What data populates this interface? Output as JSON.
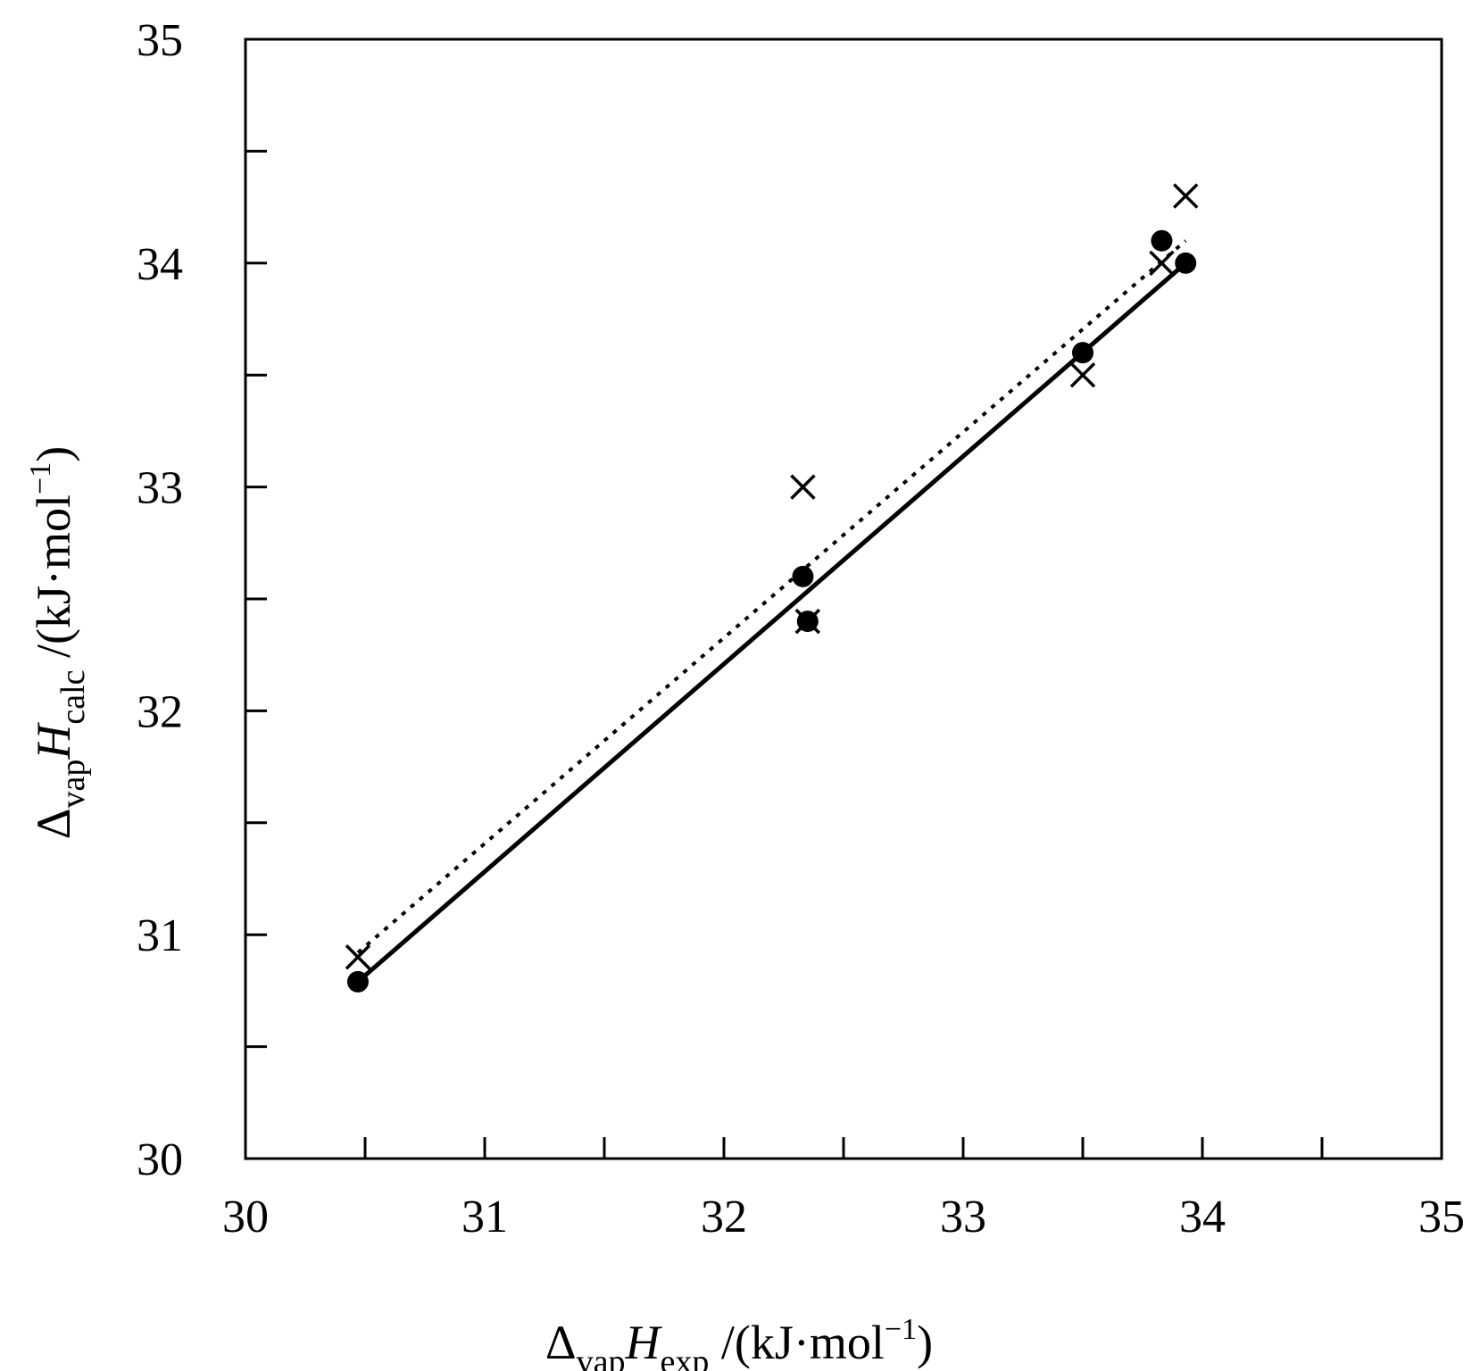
{
  "chart_data": {
    "type": "scatter",
    "title": "",
    "xlim": [
      30,
      35
    ],
    "ylim": [
      30,
      35
    ],
    "x_ticks": [
      "30",
      "31",
      "32",
      "33",
      "34",
      "35"
    ],
    "y_ticks": [
      "30",
      "31",
      "32",
      "33",
      "34",
      "35"
    ],
    "minor_tick_step": 0.5,
    "grid": false,
    "xlabel": {
      "delta": "Δ",
      "sub1": "vap",
      "symbol": "H",
      "sub2": "exp",
      "unit_open": " /(kJ·mol",
      "sup": "−1",
      "unit_close": ")"
    },
    "ylabel": {
      "delta": "Δ",
      "sub1": "vap",
      "symbol": "H",
      "sub2": "calc",
      "unit_open": " /(kJ·mol",
      "sup": "−1",
      "unit_close": ")"
    },
    "series": [
      {
        "marker": "circle",
        "color": "#000000",
        "points": [
          [
            30.47,
            30.79
          ],
          [
            32.33,
            32.6
          ],
          [
            32.35,
            32.4
          ],
          [
            33.5,
            33.6
          ],
          [
            33.83,
            34.1
          ],
          [
            33.93,
            34.0
          ]
        ]
      },
      {
        "marker": "x",
        "color": "#000000",
        "points": [
          [
            30.47,
            30.9
          ],
          [
            32.33,
            33.0
          ],
          [
            32.35,
            32.4
          ],
          [
            33.5,
            33.5
          ],
          [
            33.83,
            34.0
          ],
          [
            33.93,
            34.3
          ]
        ]
      }
    ],
    "fit_lines": [
      {
        "style": "solid",
        "x": [
          30.47,
          33.93
        ],
        "y": [
          30.79,
          34.0
        ]
      },
      {
        "style": "dotted",
        "x": [
          30.47,
          33.93
        ],
        "y": [
          30.92,
          34.1
        ]
      }
    ]
  }
}
